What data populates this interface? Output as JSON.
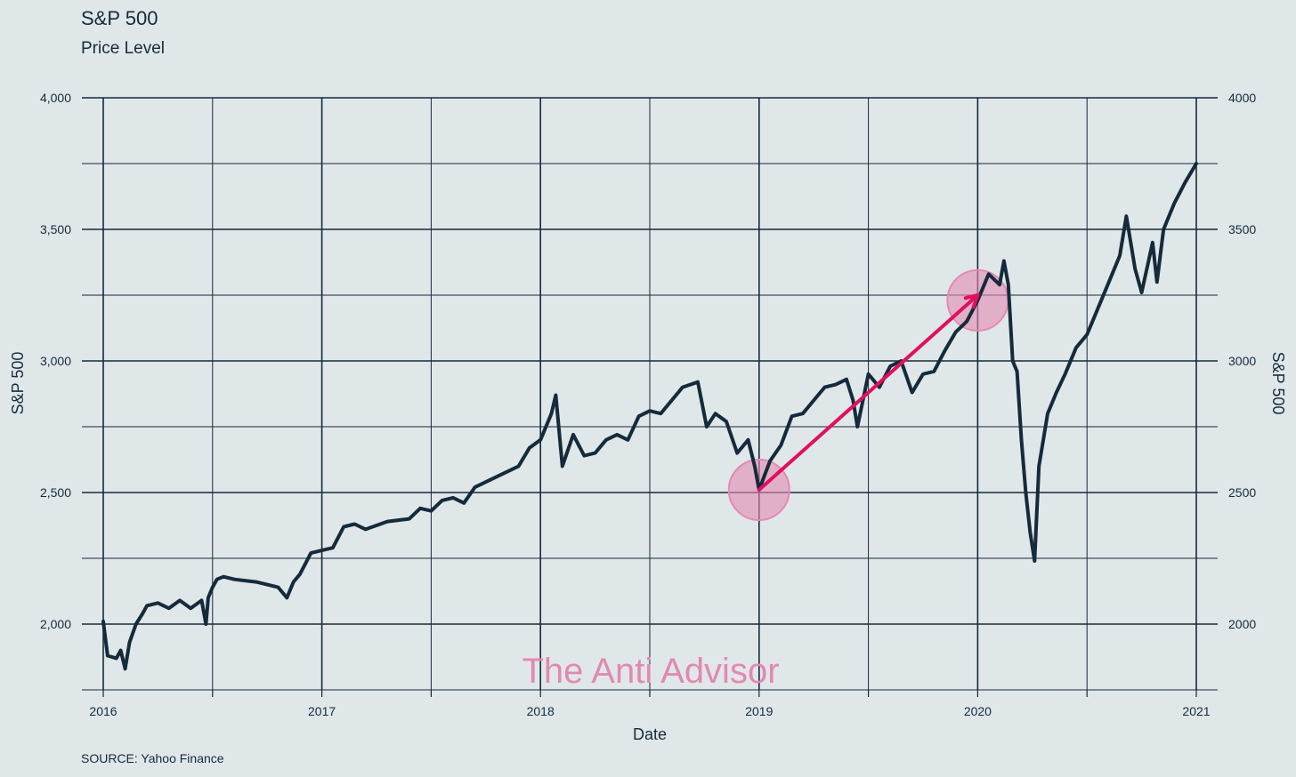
{
  "header": {
    "title": "S&P 500",
    "subtitle": "Price Level",
    "source": "SOURCE: Yahoo Finance"
  },
  "watermark": "The Anti Advisor",
  "colors": {
    "background": "#dfe7e9",
    "line": "#152b3b",
    "grid": "#172a3a",
    "highlight_fill": "#e48ab4",
    "arrow": "#e0105e"
  },
  "chart_data": {
    "type": "line",
    "title": "S&P 500",
    "subtitle": "Price Level",
    "xlabel": "Date",
    "ylabel": "S&P 500",
    "ylabel_right": "S&P 500",
    "xlim": [
      2016.0,
      2021.0
    ],
    "ylim": [
      1750,
      4000
    ],
    "x_ticks": [
      2016,
      2017,
      2018,
      2019,
      2020,
      2021
    ],
    "x_tick_labels": [
      "2016",
      "2017",
      "2018",
      "2019",
      "2020",
      "2021"
    ],
    "y_ticks_left": [
      2000,
      2500,
      3000,
      3500,
      4000
    ],
    "y_tick_labels_left": [
      "2,000",
      "2,500",
      "3,000",
      "3,500",
      "4,000"
    ],
    "y_ticks_right": [
      2000,
      2500,
      3000,
      3500,
      4000
    ],
    "y_tick_labels_right": [
      "2000",
      "2500",
      "3000",
      "3500",
      "4000"
    ],
    "grid": true,
    "series": [
      {
        "x": [
          2016.0,
          2016.02,
          2016.06,
          2016.08,
          2016.1,
          2016.12,
          2016.15,
          2016.18,
          2016.2,
          2016.25,
          2016.3,
          2016.35,
          2016.4,
          2016.45,
          2016.47,
          2016.48,
          2016.5,
          2016.52,
          2016.55,
          2016.6,
          2016.7,
          2016.8,
          2016.84,
          2016.87,
          2016.9,
          2016.95,
          2017.0,
          2017.05,
          2017.1,
          2017.15,
          2017.2,
          2017.3,
          2017.4,
          2017.45,
          2017.5,
          2017.55,
          2017.6,
          2017.65,
          2017.7,
          2017.8,
          2017.9,
          2017.95,
          2018.0,
          2018.05,
          2018.07,
          2018.1,
          2018.15,
          2018.2,
          2018.25,
          2018.3,
          2018.35,
          2018.4,
          2018.45,
          2018.5,
          2018.55,
          2018.6,
          2018.65,
          2018.72,
          2018.76,
          2018.8,
          2018.85,
          2018.9,
          2018.95,
          2018.98,
          2019.0,
          2019.05,
          2019.1,
          2019.15,
          2019.2,
          2019.25,
          2019.3,
          2019.35,
          2019.4,
          2019.43,
          2019.45,
          2019.5,
          2019.55,
          2019.6,
          2019.65,
          2019.7,
          2019.75,
          2019.8,
          2019.85,
          2019.9,
          2019.95,
          2020.0,
          2020.05,
          2020.1,
          2020.12,
          2020.14,
          2020.16,
          2020.18,
          2020.2,
          2020.22,
          2020.24,
          2020.26,
          2020.28,
          2020.32,
          2020.36,
          2020.4,
          2020.45,
          2020.5,
          2020.55,
          2020.6,
          2020.65,
          2020.68,
          2020.72,
          2020.75,
          2020.8,
          2020.82,
          2020.85,
          2020.9,
          2020.95,
          2021.0
        ],
        "values": [
          2010,
          1880,
          1870,
          1900,
          1830,
          1930,
          2000,
          2040,
          2070,
          2080,
          2060,
          2090,
          2060,
          2090,
          2000,
          2100,
          2140,
          2170,
          2180,
          2170,
          2160,
          2140,
          2100,
          2160,
          2190,
          2270,
          2280,
          2290,
          2370,
          2380,
          2360,
          2390,
          2400,
          2440,
          2430,
          2470,
          2480,
          2460,
          2520,
          2560,
          2600,
          2670,
          2700,
          2800,
          2870,
          2600,
          2720,
          2640,
          2650,
          2700,
          2720,
          2700,
          2790,
          2810,
          2800,
          2850,
          2900,
          2920,
          2750,
          2800,
          2770,
          2650,
          2700,
          2600,
          2510,
          2620,
          2680,
          2790,
          2800,
          2850,
          2900,
          2910,
          2930,
          2850,
          2750,
          2950,
          2900,
          2980,
          3000,
          2880,
          2950,
          2960,
          3040,
          3110,
          3150,
          3230,
          3330,
          3290,
          3380,
          3290,
          3000,
          2960,
          2700,
          2500,
          2350,
          2240,
          2600,
          2800,
          2880,
          2950,
          3050,
          3100,
          3200,
          3300,
          3400,
          3550,
          3350,
          3260,
          3450,
          3300,
          3500,
          3600,
          3680,
          3750
        ]
      }
    ],
    "annotations": [
      {
        "type": "circle",
        "x": 2019.0,
        "y": 2510
      },
      {
        "type": "circle",
        "x": 2020.0,
        "y": 3230
      },
      {
        "type": "arrow",
        "from": [
          2019.0,
          2510
        ],
        "to": [
          2020.0,
          3250
        ]
      }
    ]
  }
}
